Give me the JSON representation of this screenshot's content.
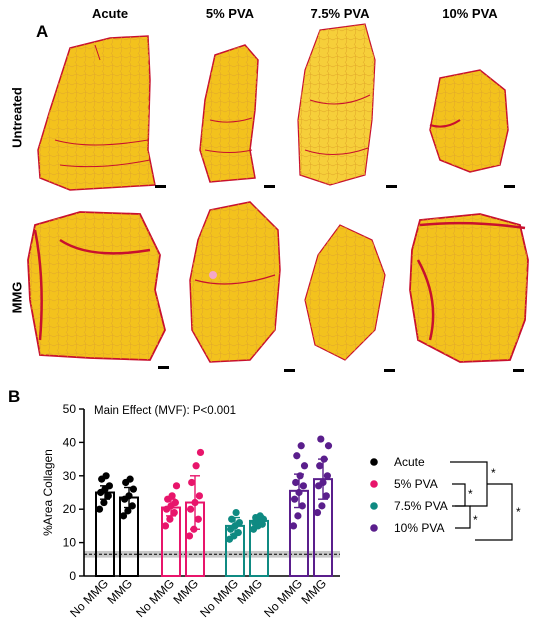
{
  "panel_a": {
    "letter": "A",
    "columns": [
      "Acute",
      "5% PVA",
      "7.5% PVA",
      "10% PVA"
    ],
    "rows": [
      "Untreated",
      "MMG"
    ]
  },
  "panel_b": {
    "letter": "B",
    "annotation": "Main Effect (MVF): P<0.001"
  },
  "colors": {
    "tissue_fill": "#f3c21d",
    "tissue_light": "#f8dc4a",
    "collagen": "#c8102e",
    "acute": "#000000",
    "pva5": "#e8156b",
    "pva75": "#0f8a82",
    "pva10": "#5a1e8c"
  },
  "chart_data": {
    "type": "bar",
    "ylabel": "%Area  Collagen",
    "ylim": [
      0,
      50
    ],
    "yticks": [
      0,
      10,
      20,
      30,
      40,
      50
    ],
    "categories": [
      "No MMG",
      "MMG",
      "No MMG",
      "MMG",
      "No MMG",
      "MMG",
      "No MMG",
      "MMG"
    ],
    "series": [
      {
        "name": "Acute",
        "color": "#000000",
        "no_mmg": 25,
        "mmg": 23.5,
        "no_mmg_err": 2,
        "mmg_err": 3,
        "no_mmg_points": [
          20,
          22,
          24,
          25,
          26,
          27,
          29,
          30
        ],
        "mmg_points": [
          18,
          19.5,
          21,
          23,
          24,
          26,
          28,
          29
        ]
      },
      {
        "name": "5% PVA",
        "color": "#e8156b",
        "no_mmg": 20.5,
        "mmg": 22,
        "no_mmg_err": 2.5,
        "mmg_err": 8,
        "no_mmg_points": [
          15,
          17,
          19,
          20,
          21,
          22,
          23,
          24,
          27
        ],
        "mmg_points": [
          12,
          14,
          17,
          20,
          22,
          24,
          28,
          33,
          37
        ]
      },
      {
        "name": "7.5% PVA",
        "color": "#0f8a82",
        "no_mmg": 15,
        "mmg": 16.5,
        "no_mmg_err": 2.5,
        "mmg_err": 1.5,
        "no_mmg_points": [
          11,
          12,
          13,
          14,
          15,
          16,
          17,
          19
        ],
        "mmg_points": [
          14,
          15,
          15.5,
          16,
          16.5,
          17,
          17.5,
          18
        ]
      },
      {
        "name": "10% PVA",
        "color": "#5a1e8c",
        "no_mmg": 25.5,
        "mmg": 29,
        "no_mmg_err": 5,
        "mmg_err": 6,
        "no_mmg_points": [
          15,
          18,
          21,
          23,
          25,
          27,
          28,
          30,
          33,
          36,
          39
        ],
        "mmg_points": [
          19,
          21,
          24,
          27,
          28,
          30,
          33,
          35,
          39,
          41
        ]
      }
    ],
    "reference_band": {
      "center": 6.5,
      "low": 5.5,
      "high": 7.5
    },
    "legend": [
      "Acute",
      "5% PVA",
      "7.5% PVA",
      "10% PVA"
    ],
    "significance_marks": [
      "*",
      "*",
      "*",
      "*"
    ]
  }
}
